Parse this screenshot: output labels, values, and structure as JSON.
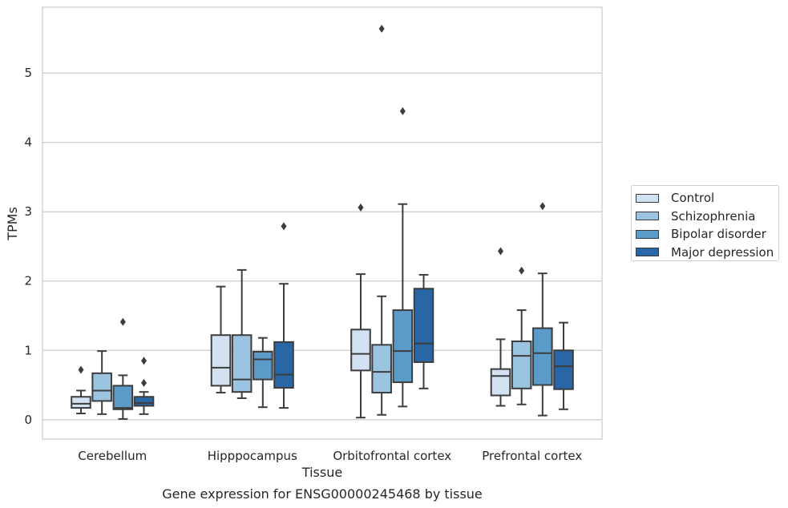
{
  "chart_data": {
    "type": "box",
    "title": "Gene expression for ENSG00000245468 by tissue",
    "xlabel": "Tissue",
    "ylabel": "TPMs",
    "categories": [
      "Cerebellum",
      "Hipppocampus",
      "Orbitofrontal cortex",
      "Prefrontal cortex"
    ],
    "ylim": [
      -0.28,
      5.95
    ],
    "yticks": [
      0,
      1,
      2,
      3,
      4,
      5
    ],
    "grid": "horizontal",
    "legend_position": "right",
    "series": [
      {
        "name": "Control",
        "color": "#d2e2f2",
        "boxes": [
          {
            "whislo": 0.09,
            "q1": 0.17,
            "med": 0.23,
            "q3": 0.33,
            "whishi": 0.42,
            "fliers": [
              0.72
            ]
          },
          {
            "whislo": 0.39,
            "q1": 0.49,
            "med": 0.75,
            "q3": 1.22,
            "whishi": 1.92,
            "fliers": []
          },
          {
            "whislo": 0.03,
            "q1": 0.71,
            "med": 0.95,
            "q3": 1.3,
            "whishi": 2.1,
            "fliers": [
              3.06
            ]
          },
          {
            "whislo": 0.2,
            "q1": 0.35,
            "med": 0.63,
            "q3": 0.73,
            "whishi": 1.16,
            "fliers": [
              2.43
            ]
          }
        ]
      },
      {
        "name": "Schizophrenia",
        "color": "#9ac4df",
        "boxes": [
          {
            "whislo": 0.08,
            "q1": 0.27,
            "med": 0.42,
            "q3": 0.67,
            "whishi": 0.99,
            "fliers": []
          },
          {
            "whislo": 0.31,
            "q1": 0.4,
            "med": 0.58,
            "q3": 1.22,
            "whishi": 2.16,
            "fliers": []
          },
          {
            "whislo": 0.07,
            "q1": 0.39,
            "med": 0.69,
            "q3": 1.08,
            "whishi": 1.78,
            "fliers": [
              5.64
            ]
          },
          {
            "whislo": 0.22,
            "q1": 0.45,
            "med": 0.92,
            "q3": 1.13,
            "whishi": 1.58,
            "fliers": [
              2.15
            ]
          }
        ]
      },
      {
        "name": "Bipolar disorder",
        "color": "#5a9bc9",
        "boxes": [
          {
            "whislo": 0.01,
            "q1": 0.15,
            "med": 0.17,
            "q3": 0.49,
            "whishi": 0.64,
            "fliers": [
              1.41
            ]
          },
          {
            "whislo": 0.18,
            "q1": 0.58,
            "med": 0.87,
            "q3": 0.98,
            "whishi": 1.18,
            "fliers": []
          },
          {
            "whislo": 0.19,
            "q1": 0.54,
            "med": 0.99,
            "q3": 1.58,
            "whishi": 3.11,
            "fliers": [
              4.45
            ]
          },
          {
            "whislo": 0.06,
            "q1": 0.5,
            "med": 0.96,
            "q3": 1.32,
            "whishi": 2.11,
            "fliers": [
              3.08
            ]
          }
        ]
      },
      {
        "name": "Major depression",
        "color": "#2866a6",
        "boxes": [
          {
            "whislo": 0.08,
            "q1": 0.2,
            "med": 0.24,
            "q3": 0.33,
            "whishi": 0.4,
            "fliers": [
              0.53,
              0.85
            ]
          },
          {
            "whislo": 0.17,
            "q1": 0.46,
            "med": 0.65,
            "q3": 1.12,
            "whishi": 1.96,
            "fliers": [
              2.79
            ]
          },
          {
            "whislo": 0.45,
            "q1": 0.83,
            "med": 1.1,
            "q3": 1.89,
            "whishi": 2.09,
            "fliers": []
          },
          {
            "whislo": 0.15,
            "q1": 0.44,
            "med": 0.77,
            "q3": 1.0,
            "whishi": 1.4,
            "fliers": []
          }
        ]
      }
    ]
  }
}
